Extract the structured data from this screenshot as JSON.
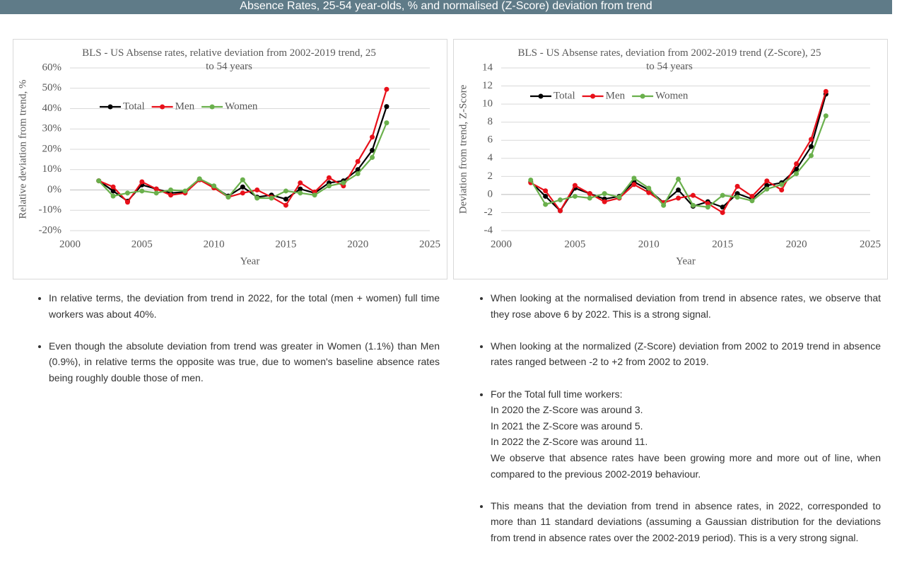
{
  "header": {
    "title": "Absence Rates, 25-54 year-olds, % and normalised (Z-Score) deviation from trend"
  },
  "chart_data": [
    {
      "type": "line",
      "title": "BLS - US Absense rates, relative deviation from 2002-2019 trend, 25 to 54 years",
      "x_label": "Year",
      "y_label": "Relative deviation from trend, %",
      "x": [
        2002,
        2003,
        2004,
        2005,
        2006,
        2007,
        2008,
        2009,
        2010,
        2011,
        2012,
        2013,
        2014,
        2015,
        2016,
        2017,
        2018,
        2019,
        2020,
        2021,
        2022
      ],
      "series": [
        {
          "name": "Total",
          "color": "#000000",
          "values": [
            4.5,
            -0.5,
            -5.5,
            2.5,
            0.5,
            -1.5,
            -1,
            5,
            1.5,
            -3,
            1.5,
            -3.5,
            -2.5,
            -4.5,
            0.5,
            -1.5,
            3.5,
            4.5,
            10,
            19.5,
            41
          ]
        },
        {
          "name": "Men",
          "color": "#e8101a",
          "values": [
            4.5,
            1.5,
            -6,
            4,
            0.5,
            -2.5,
            -1.5,
            5,
            1,
            -3.5,
            -1.5,
            0,
            -3.5,
            -7.5,
            3.5,
            -1,
            6,
            2,
            14,
            26,
            49.5
          ]
        },
        {
          "name": "Women",
          "color": "#6ab04c",
          "values": [
            4.5,
            -3,
            -1.5,
            -0.5,
            -1.5,
            0,
            -0.5,
            5.5,
            2,
            -3.5,
            5,
            -4,
            -4,
            -0.5,
            -1.5,
            -2.5,
            2,
            3.5,
            8,
            16,
            33
          ]
        }
      ],
      "xlim": [
        2000,
        2025
      ],
      "xticks": [
        2000,
        2005,
        2010,
        2015,
        2020,
        2025
      ],
      "ylim": [
        -20,
        60
      ],
      "yticks": [
        {
          "value": -20,
          "label": "-20%"
        },
        {
          "value": -10,
          "label": "-10%"
        },
        {
          "value": 0,
          "label": "0%"
        },
        {
          "value": 10,
          "label": "10%"
        },
        {
          "value": 20,
          "label": "20%"
        },
        {
          "value": 30,
          "label": "30%"
        },
        {
          "value": 40,
          "label": "40%"
        },
        {
          "value": 50,
          "label": "50%"
        },
        {
          "value": 60,
          "label": "60%"
        }
      ],
      "grid": true,
      "legend": "upper left"
    },
    {
      "type": "line",
      "title": "BLS - US Absense rates, deviation from 2002-2019 trend (Z-Score), 25 to 54 years",
      "x_label": "Year",
      "y_label": "Deviation from trend, Z-Score",
      "x": [
        2002,
        2003,
        2004,
        2005,
        2006,
        2007,
        2008,
        2009,
        2010,
        2011,
        2012,
        2013,
        2014,
        2015,
        2016,
        2017,
        2018,
        2019,
        2020,
        2021,
        2022
      ],
      "series": [
        {
          "name": "Total",
          "color": "#000000",
          "values": [
            1.4,
            -0.2,
            -1.8,
            0.7,
            0.1,
            -0.5,
            -0.2,
            1.4,
            0.5,
            -0.9,
            0.5,
            -1.3,
            -0.8,
            -1.4,
            0.1,
            -0.5,
            1.0,
            1.3,
            2.8,
            5.3,
            11.1
          ]
        },
        {
          "name": "Men",
          "color": "#e8101a",
          "values": [
            1.3,
            0.4,
            -1.8,
            1.0,
            0.1,
            -0.8,
            -0.4,
            1.1,
            0.2,
            -0.9,
            -0.4,
            -0.1,
            -1.0,
            -2.0,
            0.9,
            -0.2,
            1.5,
            0.5,
            3.4,
            6.1,
            11.4
          ]
        },
        {
          "name": "Women",
          "color": "#6ab04c",
          "values": [
            1.6,
            -1.1,
            -0.6,
            -0.2,
            -0.4,
            0.1,
            -0.3,
            1.8,
            0.7,
            -1.2,
            1.7,
            -1.2,
            -1.4,
            -0.1,
            -0.3,
            -0.7,
            0.6,
            1.1,
            2.3,
            4.3,
            8.7
          ]
        }
      ],
      "xlim": [
        2000,
        2025
      ],
      "xticks": [
        2000,
        2005,
        2010,
        2015,
        2020,
        2025
      ],
      "ylim": [
        -4,
        14
      ],
      "yticks": [
        -4,
        -2,
        0,
        2,
        4,
        6,
        8,
        10,
        12,
        14
      ],
      "grid": true,
      "legend": "upper left"
    }
  ],
  "left_bullets": [
    "In relative terms, the deviation from trend in 2022, for the total (men + women) full time workers was about 40%.",
    "Even though the absolute deviation from trend was greater in Women (1.1%) than Men (0.9%), in relative terms the opposite was true, due to women's baseline absence rates being roughly double those of men."
  ],
  "right_bullets": [
    [
      "When looking at the normalised deviation from trend in absence rates, we observe that they rose above 6 by 2022. This is a strong signal."
    ],
    [
      "When looking at the normalized (Z-Score) deviation from 2002 to 2019 trend in absence rates ranged between -2 to +2 from 2002 to 2019."
    ],
    [
      "For the Total full time workers:",
      "In 2020 the Z-Score was around 3.",
      "In 2021 the Z-Score was around 5.",
      "In 2022 the Z-Score was around 11.",
      "We observe that absence rates have been growing more and more out of line, when compared to the previous 2002-2019 behaviour."
    ],
    [
      "This means that the deviation from trend in absence rates, in 2022, corresponded to more than 11 standard deviations (assuming a Gaussian distribution for the deviations from trend in absence rates over the 2002-2019 period). This is a very strong signal."
    ]
  ]
}
